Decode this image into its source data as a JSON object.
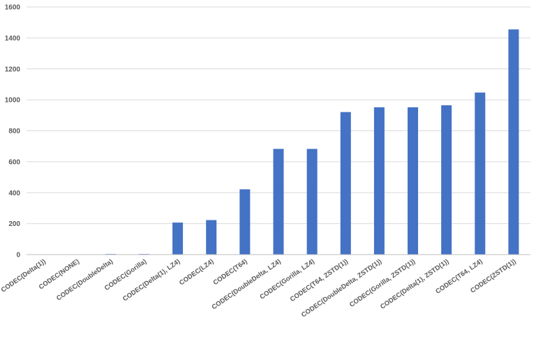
{
  "chart_data": {
    "type": "bar",
    "title": "",
    "xlabel": "",
    "ylabel": "",
    "ylim": [
      0,
      1600
    ],
    "yticks": [
      0,
      200,
      400,
      600,
      800,
      1000,
      1200,
      1400,
      1600
    ],
    "grid": true,
    "legend": "none",
    "bar_color": "#4472c4",
    "categories": [
      "CODEC(Delta(1))",
      "CODEC(NONE)",
      "CODEC(DoubleDelta)",
      "CODEC(Gorilla)",
      "CODEC(Delta(1), LZ4)",
      "CODEC(LZ4)",
      "CODEC(T64)",
      "CODEC(DoubleDelta, LZ4)",
      "CODEC(Gorilla, LZ4)",
      "CODEC(T64, ZSTD(1))",
      "CODEC(DoubleDelta, ZSTD(1))",
      "CODEC(Gorilla, ZSTD(1))",
      "CODEC(Delta(1), ZSTD(1))",
      "CODEC(T64, LZ4)",
      "CODEC(ZSTD(1))"
    ],
    "values": [
      0,
      0,
      4,
      4,
      207,
      223,
      422,
      683,
      683,
      921,
      952,
      952,
      965,
      1047,
      1455
    ]
  }
}
